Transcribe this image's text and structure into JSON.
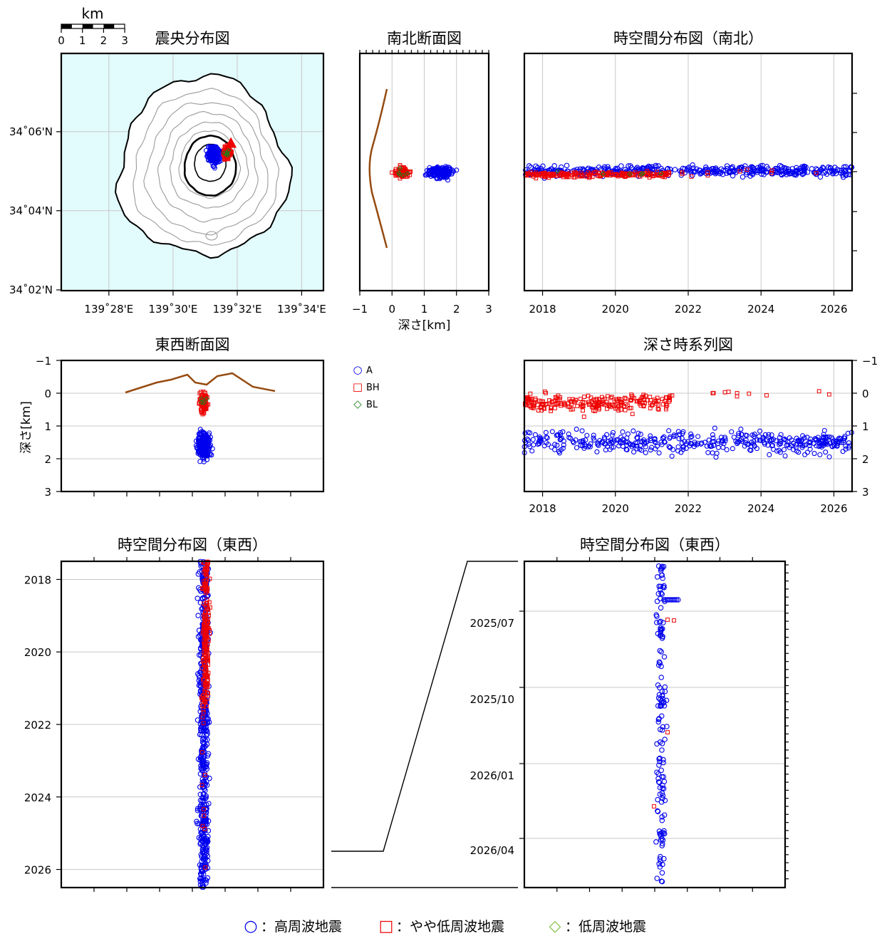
{
  "scale_bar": {
    "unit": "km",
    "ticks": [
      "0",
      "1",
      "2",
      "3"
    ]
  },
  "legend_main": [
    {
      "symbol": "○",
      "label": "：高周波地震",
      "color": "#0000ee"
    },
    {
      "symbol": "□",
      "label": "：やや低周波地震",
      "color": "#ee0000"
    },
    {
      "symbol": "◇",
      "label": "：低周波地震",
      "color": "#7fc040"
    }
  ],
  "legend_small": [
    {
      "symbol": "○",
      "label": "A",
      "color": "#0000ee"
    },
    {
      "symbol": "□",
      "label": "BH",
      "color": "#ee0000"
    },
    {
      "symbol": "◇",
      "label": "BL",
      "color": "#1a7f1a"
    }
  ],
  "chart_data": [
    {
      "id": "epicenter",
      "type": "scatter",
      "title": "震央分布図",
      "x_ticks": [
        "139˚28'E",
        "139˚30'E",
        "139˚32'E",
        "139˚34'E"
      ],
      "y_ticks": [
        "34˚06'N",
        "34˚04'N",
        "34˚02'N"
      ],
      "xlim": [
        139.442,
        139.578
      ],
      "ylim": [
        34.033,
        34.133
      ],
      "summit_marker": {
        "lon": 139.53,
        "lat": 34.095,
        "color": "#ee0000"
      },
      "clusters": [
        {
          "series": "A",
          "lon": 139.521,
          "lat": 34.09,
          "sd_lon": 0.003,
          "sd_lat": 0.0035,
          "n": 260
        },
        {
          "series": "BH",
          "lon": 139.528,
          "lat": 34.091,
          "sd_lon": 0.002,
          "sd_lat": 0.0025,
          "n": 110
        },
        {
          "series": "BL",
          "lon": 139.528,
          "lat": 34.091,
          "sd_lon": 0.0015,
          "sd_lat": 0.002,
          "n": 5
        }
      ]
    },
    {
      "id": "ns-section",
      "type": "scatter",
      "title": "南北断面図",
      "xlabel": "深さ[km]",
      "x_ticks": [
        "−1",
        "0",
        "1",
        "2",
        "3"
      ],
      "xlim": [
        -1,
        3
      ],
      "clusters": [
        {
          "series": "A",
          "depth": 1.5,
          "sd_depth": 0.4,
          "n": 220
        },
        {
          "series": "BH",
          "depth": 0.3,
          "sd_depth": 0.25,
          "n": 90
        },
        {
          "series": "BL",
          "depth": 0.3,
          "sd_depth": 0.2,
          "n": 5
        }
      ]
    },
    {
      "id": "st-ns",
      "type": "scatter",
      "title": "時空間分布図（南北）",
      "x_ticks": [
        "2018",
        "2020",
        "2022",
        "2024",
        "2026"
      ],
      "xlim": [
        2017.5,
        2026.5
      ]
    },
    {
      "id": "ew-section",
      "type": "scatter",
      "title": "東西断面図",
      "ylabel": "深さ[km]",
      "y_ticks": [
        "−1",
        "0",
        "1",
        "2",
        "3"
      ],
      "ylim": [
        -1,
        3
      ],
      "clusters": [
        {
          "series": "A",
          "depth": 1.6,
          "sd_depth": 0.4,
          "n": 260
        },
        {
          "series": "BH",
          "depth": 0.3,
          "sd_depth": 0.3,
          "n": 100
        },
        {
          "series": "BL",
          "depth": 0.2,
          "sd_depth": 0.15,
          "n": 4
        }
      ]
    },
    {
      "id": "depth-ts",
      "type": "scatter",
      "title": "深さ時系列図",
      "x_ticks": [
        "2018",
        "2020",
        "2022",
        "2024",
        "2026"
      ],
      "xlim": [
        2017.5,
        2026.5
      ],
      "y_ticks": [
        "−1",
        "0",
        "1",
        "2",
        "3"
      ],
      "ylim": [
        -1,
        3
      ],
      "clusters": [
        {
          "series": "A",
          "year_range": [
            2017.5,
            2026.5
          ],
          "depth": 1.5,
          "sd_depth": 0.35,
          "n": 420
        },
        {
          "series": "BH",
          "year_range": [
            2017.5,
            2021.5
          ],
          "depth": 0.3,
          "sd_depth": 0.25,
          "n": 230
        },
        {
          "series": "BH",
          "year_range": [
            2021.5,
            2026.0
          ],
          "depth": 0.0,
          "sd_depth": 0.15,
          "n": 12
        }
      ]
    },
    {
      "id": "st-ew",
      "type": "scatter",
      "title": "時空間分布図（東西）",
      "y_ticks": [
        "2018",
        "2020",
        "2022",
        "2024",
        "2026"
      ],
      "ylim": [
        2017.5,
        2026.5
      ]
    },
    {
      "id": "st-ew-zoom",
      "type": "scatter",
      "title": "時空間分布図（東西）",
      "y_ticks": [
        "2025/07",
        "2025/10",
        "2026/01",
        "2026/04"
      ],
      "ylim": [
        "2025/05",
        "2026/06"
      ]
    }
  ]
}
